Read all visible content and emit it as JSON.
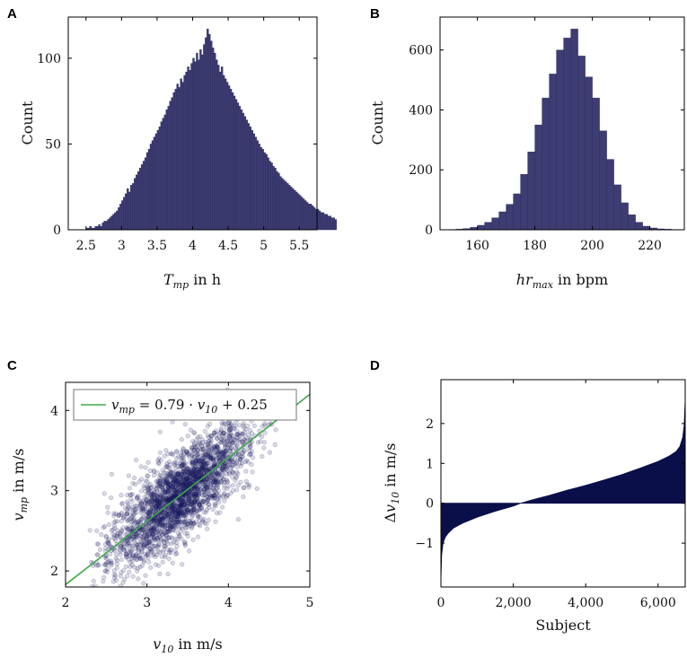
{
  "colors": {
    "bar": "#3d3d73",
    "bar_edge": "#2a2a5c",
    "fill": "#0a0f4a",
    "scatter": "#1b1b5e",
    "fit_line": "#3fa84a"
  },
  "chart_data": [
    {
      "panel": "A",
      "type": "bar",
      "xlabel_main": "T",
      "xlabel_sub": "mp",
      "xlabel_unit": " in h",
      "ylabel": "Count",
      "xlim": [
        2.25,
        5.75
      ],
      "ylim": [
        0,
        124
      ],
      "xticks": [
        2.5,
        3,
        3.5,
        4,
        4.5,
        5,
        5.5
      ],
      "xtick_labels": [
        "2.5",
        "3",
        "3.5",
        "4",
        "4.5",
        "5",
        "5.5"
      ],
      "yticks": [
        0,
        50,
        100
      ],
      "ytick_labels": [
        "0",
        "50",
        "100"
      ],
      "bin_start": 2.5,
      "bin_width": 0.025,
      "values": [
        1,
        1,
        2,
        1,
        1,
        2,
        2,
        3,
        2,
        4,
        5,
        5,
        6,
        7,
        8,
        9,
        10,
        11,
        13,
        15,
        17,
        19,
        21,
        24,
        22,
        26,
        27,
        30,
        32,
        34,
        36,
        38,
        40,
        42,
        45,
        47,
        50,
        52,
        54,
        56,
        58,
        60,
        63,
        65,
        67,
        70,
        72,
        75,
        77,
        80,
        82,
        85,
        83,
        88,
        86,
        90,
        92,
        95,
        93,
        97,
        100,
        98,
        103,
        99,
        105,
        102,
        108,
        112,
        117,
        114,
        110,
        106,
        103,
        99,
        96,
        92,
        95,
        90,
        88,
        86,
        84,
        82,
        80,
        78,
        76,
        74,
        72,
        70,
        68,
        66,
        64,
        62,
        60,
        58,
        56,
        54,
        52,
        50,
        48,
        47,
        45,
        44,
        42,
        40,
        39,
        37,
        36,
        34,
        33,
        31,
        30,
        29,
        28,
        27,
        26,
        25,
        24,
        23,
        22,
        21,
        20,
        19,
        18,
        17,
        16,
        15,
        15,
        14,
        13,
        12,
        12,
        11,
        10,
        10,
        9,
        9,
        8,
        8,
        7,
        7,
        6
      ]
    },
    {
      "panel": "B",
      "type": "bar",
      "xlabel_main": "hr",
      "xlabel_sub": "max",
      "xlabel_unit": " in bpm",
      "ylabel": "Count",
      "xlim": [
        147,
        232
      ],
      "ylim": [
        0,
        710
      ],
      "xticks": [
        160,
        180,
        200,
        220
      ],
      "xtick_labels": [
        "160",
        "180",
        "200",
        "220"
      ],
      "yticks": [
        0,
        200,
        400,
        600
      ],
      "ytick_labels": [
        "0",
        "200",
        "400",
        "600"
      ],
      "bin_start": 150,
      "bin_width": 2.5,
      "values": [
        1,
        2,
        4,
        8,
        15,
        25,
        40,
        60,
        85,
        120,
        185,
        260,
        350,
        440,
        520,
        600,
        640,
        670,
        580,
        510,
        440,
        330,
        235,
        150,
        90,
        50,
        25,
        12,
        6,
        3,
        2,
        1
      ]
    },
    {
      "panel": "C",
      "type": "scatter",
      "xlabel_main": "v",
      "xlabel_sub": "10",
      "xlabel_unit": " in m/s",
      "ylabel_main": "v",
      "ylabel_sub": "mp",
      "ylabel_unit": " in m/s",
      "xlim": [
        2,
        5
      ],
      "ylim": [
        1.8,
        4.35
      ],
      "xticks": [
        2,
        3,
        4,
        5
      ],
      "xtick_labels": [
        "2",
        "3",
        "4",
        "5"
      ],
      "yticks": [
        2,
        3,
        4
      ],
      "ytick_labels": [
        "2",
        "3",
        "4"
      ],
      "fit": {
        "slope": 0.79,
        "intercept": 0.25
      },
      "legend": {
        "lhs_main": "v",
        "lhs_sub": "mp",
        "eq_mid": " = 0.79 · ",
        "rhs_main": "v",
        "rhs_sub": "10",
        "eq_end": " + 0.25",
        "position": "top-left"
      },
      "point_count": 2600,
      "x_mean": 3.4,
      "x_sd": 0.42,
      "residual_sd": 0.26
    },
    {
      "panel": "D",
      "type": "area",
      "xlabel": "Subject",
      "ylabel_prefix": "Δ",
      "ylabel_main": "v",
      "ylabel_sub": "10",
      "ylabel_unit": " in m/s",
      "xlim": [
        0,
        6750
      ],
      "ylim": [
        -2.1,
        3.1
      ],
      "xticks": [
        0,
        2000,
        4000,
        6000
      ],
      "xtick_labels": [
        "0",
        "2,000",
        "4,000",
        "6,000"
      ],
      "yticks": [
        -1,
        0,
        1,
        2
      ],
      "ytick_labels": [
        "−1",
        "0",
        "1",
        "2"
      ],
      "x": [
        0,
        20,
        60,
        120,
        200,
        350,
        600,
        1000,
        1500,
        2000,
        2200,
        2500,
        3000,
        3500,
        4000,
        4500,
        5000,
        5500,
        6000,
        6300,
        6500,
        6600,
        6680,
        6720,
        6750
      ],
      "y": [
        -1.95,
        -1.3,
        -1.0,
        -0.85,
        -0.75,
        -0.62,
        -0.5,
        -0.35,
        -0.2,
        -0.07,
        0.0,
        0.08,
        0.2,
        0.33,
        0.45,
        0.58,
        0.72,
        0.88,
        1.05,
        1.18,
        1.3,
        1.42,
        1.65,
        1.95,
        2.6
      ]
    }
  ]
}
